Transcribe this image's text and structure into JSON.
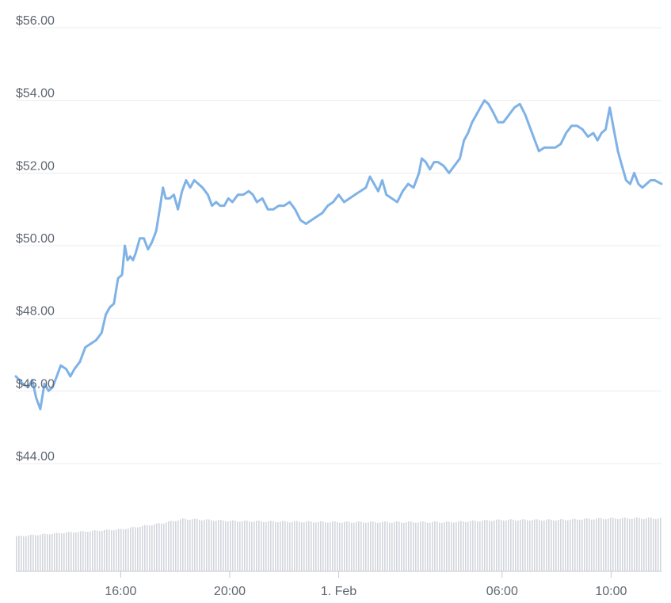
{
  "chart_data": {
    "type": "line",
    "title": "",
    "xlabel": "",
    "ylabel": "",
    "y_ticks": [
      "$44.00",
      "$46.00",
      "$48.00",
      "$50.00",
      "$52.00",
      "$54.00",
      "$56.00"
    ],
    "y_tick_values": [
      44,
      46,
      48,
      50,
      52,
      54,
      56
    ],
    "ylim": [
      44,
      56
    ],
    "x_ticks": [
      "16:00",
      "20:00",
      "1. Feb",
      "06:00",
      "10:00"
    ],
    "x_tick_times_hours": [
      16,
      20,
      24,
      30,
      34
    ],
    "xlim_hours": [
      12.15,
      35.85
    ],
    "grid": true,
    "line_color": "#7fb2e6",
    "volume_color": "#d3d6dd",
    "series": [
      {
        "points_hours_price": [
          [
            12.15,
            46.4
          ],
          [
            12.4,
            46.2
          ],
          [
            12.6,
            46.1
          ],
          [
            12.75,
            46.3
          ],
          [
            12.9,
            45.8
          ],
          [
            13.05,
            45.5
          ],
          [
            13.2,
            46.2
          ],
          [
            13.35,
            46.0
          ],
          [
            13.5,
            46.1
          ],
          [
            13.65,
            46.4
          ],
          [
            13.8,
            46.7
          ],
          [
            14.0,
            46.6
          ],
          [
            14.15,
            46.4
          ],
          [
            14.3,
            46.6
          ],
          [
            14.5,
            46.8
          ],
          [
            14.7,
            47.2
          ],
          [
            14.9,
            47.3
          ],
          [
            15.1,
            47.4
          ],
          [
            15.3,
            47.6
          ],
          [
            15.45,
            48.1
          ],
          [
            15.6,
            48.3
          ],
          [
            15.75,
            48.4
          ],
          [
            15.9,
            49.1
          ],
          [
            16.05,
            49.2
          ],
          [
            16.15,
            50.0
          ],
          [
            16.25,
            49.6
          ],
          [
            16.35,
            49.7
          ],
          [
            16.45,
            49.6
          ],
          [
            16.55,
            49.8
          ],
          [
            16.7,
            50.2
          ],
          [
            16.85,
            50.2
          ],
          [
            17.0,
            49.9
          ],
          [
            17.15,
            50.1
          ],
          [
            17.3,
            50.4
          ],
          [
            17.45,
            51.1
          ],
          [
            17.55,
            51.6
          ],
          [
            17.65,
            51.3
          ],
          [
            17.8,
            51.3
          ],
          [
            17.95,
            51.4
          ],
          [
            18.1,
            51.0
          ],
          [
            18.25,
            51.5
          ],
          [
            18.4,
            51.8
          ],
          [
            18.55,
            51.6
          ],
          [
            18.7,
            51.8
          ],
          [
            18.85,
            51.7
          ],
          [
            19.0,
            51.6
          ],
          [
            19.2,
            51.4
          ],
          [
            19.35,
            51.1
          ],
          [
            19.5,
            51.2
          ],
          [
            19.65,
            51.1
          ],
          [
            19.8,
            51.1
          ],
          [
            19.95,
            51.3
          ],
          [
            20.1,
            51.2
          ],
          [
            20.3,
            51.4
          ],
          [
            20.5,
            51.4
          ],
          [
            20.7,
            51.5
          ],
          [
            20.85,
            51.4
          ],
          [
            21.0,
            51.2
          ],
          [
            21.2,
            51.3
          ],
          [
            21.4,
            51.0
          ],
          [
            21.6,
            51.0
          ],
          [
            21.8,
            51.1
          ],
          [
            22.0,
            51.1
          ],
          [
            22.2,
            51.2
          ],
          [
            22.4,
            51.0
          ],
          [
            22.6,
            50.7
          ],
          [
            22.8,
            50.6
          ],
          [
            23.0,
            50.7
          ],
          [
            23.2,
            50.8
          ],
          [
            23.4,
            50.9
          ],
          [
            23.6,
            51.1
          ],
          [
            23.8,
            51.2
          ],
          [
            24.0,
            51.4
          ],
          [
            24.2,
            51.2
          ],
          [
            24.4,
            51.3
          ],
          [
            24.6,
            51.4
          ],
          [
            24.8,
            51.5
          ],
          [
            25.0,
            51.6
          ],
          [
            25.15,
            51.9
          ],
          [
            25.3,
            51.7
          ],
          [
            25.45,
            51.5
          ],
          [
            25.6,
            51.8
          ],
          [
            25.75,
            51.4
          ],
          [
            25.95,
            51.3
          ],
          [
            26.15,
            51.2
          ],
          [
            26.35,
            51.5
          ],
          [
            26.55,
            51.7
          ],
          [
            26.75,
            51.6
          ],
          [
            26.95,
            52.0
          ],
          [
            27.05,
            52.4
          ],
          [
            27.2,
            52.3
          ],
          [
            27.35,
            52.1
          ],
          [
            27.5,
            52.3
          ],
          [
            27.65,
            52.3
          ],
          [
            27.85,
            52.2
          ],
          [
            28.05,
            52.0
          ],
          [
            28.25,
            52.2
          ],
          [
            28.45,
            52.4
          ],
          [
            28.6,
            52.9
          ],
          [
            28.75,
            53.1
          ],
          [
            28.9,
            53.4
          ],
          [
            29.05,
            53.6
          ],
          [
            29.2,
            53.8
          ],
          [
            29.35,
            54.0
          ],
          [
            29.5,
            53.9
          ],
          [
            29.65,
            53.7
          ],
          [
            29.85,
            53.4
          ],
          [
            30.05,
            53.4
          ],
          [
            30.25,
            53.6
          ],
          [
            30.45,
            53.8
          ],
          [
            30.65,
            53.9
          ],
          [
            30.85,
            53.6
          ],
          [
            31.05,
            53.2
          ],
          [
            31.2,
            52.9
          ],
          [
            31.35,
            52.6
          ],
          [
            31.55,
            52.7
          ],
          [
            31.75,
            52.7
          ],
          [
            31.95,
            52.7
          ],
          [
            32.15,
            52.8
          ],
          [
            32.35,
            53.1
          ],
          [
            32.55,
            53.3
          ],
          [
            32.75,
            53.3
          ],
          [
            32.95,
            53.2
          ],
          [
            33.15,
            53.0
          ],
          [
            33.35,
            53.1
          ],
          [
            33.5,
            52.9
          ],
          [
            33.65,
            53.1
          ],
          [
            33.8,
            53.2
          ],
          [
            33.95,
            53.8
          ],
          [
            34.1,
            53.2
          ],
          [
            34.25,
            52.6
          ],
          [
            34.4,
            52.2
          ],
          [
            34.55,
            51.8
          ],
          [
            34.7,
            51.7
          ],
          [
            34.85,
            52.0
          ],
          [
            35.0,
            51.7
          ],
          [
            35.15,
            51.6
          ],
          [
            35.3,
            51.7
          ],
          [
            35.45,
            51.8
          ],
          [
            35.6,
            51.8
          ],
          [
            35.85,
            51.7
          ]
        ]
      }
    ],
    "volume_relative_by_hour": [
      [
        12.15,
        0.64
      ],
      [
        14.0,
        0.71
      ],
      [
        16.0,
        0.77
      ],
      [
        17.5,
        0.88
      ],
      [
        18.3,
        0.96
      ],
      [
        20.0,
        0.92
      ],
      [
        24.0,
        0.9
      ],
      [
        26.0,
        0.9
      ],
      [
        28.0,
        0.9
      ],
      [
        30.0,
        0.94
      ],
      [
        32.0,
        0.94
      ],
      [
        34.0,
        0.97
      ],
      [
        35.85,
        0.97
      ]
    ]
  }
}
